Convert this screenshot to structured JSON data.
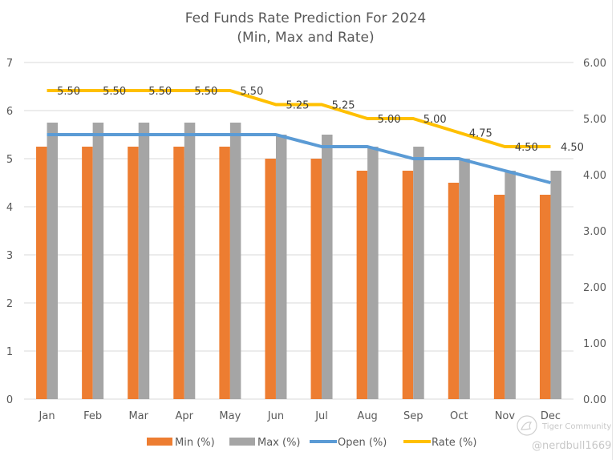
{
  "chart_data": {
    "type": "bar",
    "title": "Fed Funds Rate Prediction For 2024",
    "subtitle": "(Min, Max and Rate)",
    "xlabel": "",
    "ylabel": "",
    "categories": [
      "Jan",
      "Feb",
      "Mar",
      "Apr",
      "May",
      "Jun",
      "Jul",
      "Aug",
      "Sep",
      "Oct",
      "Nov",
      "Dec"
    ],
    "series": [
      {
        "name": "Min (%)",
        "kind": "bar",
        "axis": "primary",
        "color": "#ED7D31",
        "values": [
          5.25,
          5.25,
          5.25,
          5.25,
          5.25,
          5.0,
          5.0,
          4.75,
          4.75,
          4.5,
          4.25,
          4.25
        ]
      },
      {
        "name": "Max (%)",
        "kind": "bar",
        "axis": "primary",
        "color": "#A5A5A5",
        "values": [
          5.75,
          5.75,
          5.75,
          5.75,
          5.75,
          5.5,
          5.5,
          5.25,
          5.25,
          5.0,
          4.75,
          4.75
        ]
      },
      {
        "name": "Open (%)",
        "kind": "line",
        "axis": "primary",
        "color": "#5B9BD5",
        "values": [
          5.5,
          5.5,
          5.5,
          5.5,
          5.5,
          5.5,
          5.25,
          5.25,
          5.0,
          5.0,
          4.75,
          4.5
        ]
      },
      {
        "name": "Rate (%)",
        "kind": "line",
        "axis": "secondary",
        "color": "#FFC000",
        "values": [
          5.5,
          5.5,
          5.5,
          5.5,
          5.5,
          5.25,
          5.25,
          5.0,
          5.0,
          4.75,
          4.5,
          4.5
        ],
        "data_labels": [
          "5.50",
          "5.50",
          "5.50",
          "5.50",
          "5.50",
          "5.25",
          "5.25",
          "5.00",
          "5.00",
          "4.75",
          "4.50",
          "4.50"
        ]
      }
    ],
    "y_left": {
      "ylim": [
        0,
        7
      ],
      "ticks": [
        "0",
        "1",
        "2",
        "3",
        "4",
        "5",
        "6",
        "7"
      ]
    },
    "y_right": {
      "ylim": [
        0,
        6
      ],
      "ticks": [
        "0.00",
        "1.00",
        "2.00",
        "3.00",
        "4.00",
        "5.00",
        "6.00"
      ]
    },
    "grid": true,
    "legend_position": "bottom"
  },
  "watermark": {
    "brand": "Tiger Community",
    "handle": "@nerdbull1669"
  }
}
